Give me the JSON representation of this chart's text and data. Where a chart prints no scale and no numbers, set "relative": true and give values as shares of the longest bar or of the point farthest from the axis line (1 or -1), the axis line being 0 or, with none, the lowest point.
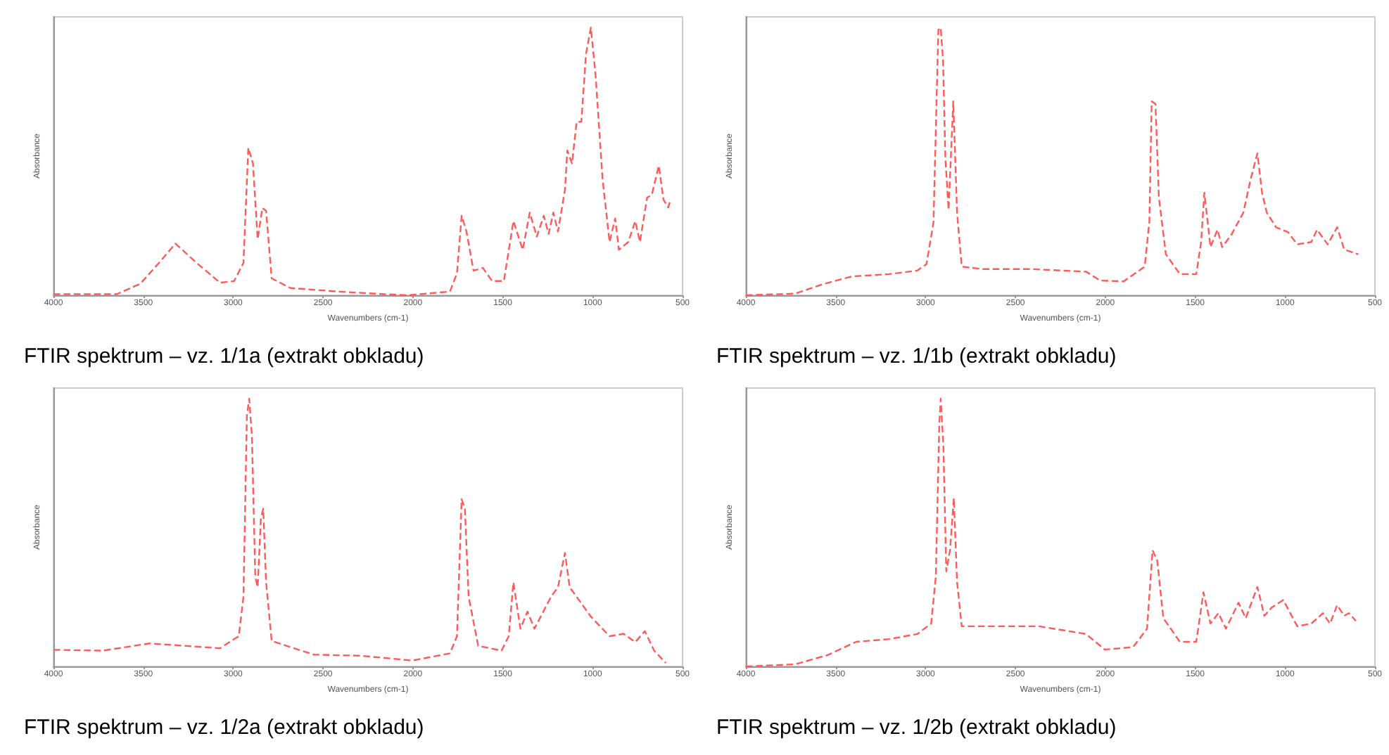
{
  "chart_data": [
    {
      "type": "line",
      "title": "FTIR spektrum – vz. 1/1a (extrakt obkladu)",
      "xlabel": "Wavenumbers (cm-1)",
      "ylabel": "Absorbance",
      "relative": true,
      "line_style": "dashed",
      "xlim": [
        4000,
        500
      ],
      "xticks": [
        4000,
        3500,
        3000,
        2500,
        2000,
        1500,
        1000,
        500
      ],
      "x": [
        4000,
        3648,
        3517,
        3413,
        3321,
        3204,
        3073,
        2995,
        2943,
        2916,
        2890,
        2864,
        2838,
        2817,
        2786,
        2681,
        2420,
        2159,
        2029,
        1794,
        1755,
        1729,
        1702,
        1663,
        1611,
        1559,
        1494,
        1441,
        1389,
        1350,
        1311,
        1272,
        1245,
        1219,
        1193,
        1154,
        1141,
        1115,
        1089,
        1063,
        1037,
        1010,
        984,
        945,
        906,
        875,
        854,
        802,
        763,
        737,
        697,
        671,
        632,
        606,
        580,
        567
      ],
      "series": [
        {
          "color": "#ff5a5a",
          "values": [
            0.004,
            0.004,
            0.043,
            0.121,
            0.193,
            0.121,
            0.047,
            0.053,
            0.121,
            0.551,
            0.492,
            0.209,
            0.326,
            0.316,
            0.063,
            0.027,
            0.014,
            0.004,
            0,
            0.014,
            0.082,
            0.297,
            0.238,
            0.092,
            0.102,
            0.053,
            0.053,
            0.277,
            0.17,
            0.309,
            0.219,
            0.297,
            0.229,
            0.309,
            0.238,
            0.395,
            0.541,
            0.492,
            0.648,
            0.648,
            0.902,
            1,
            0.824,
            0.434,
            0.199,
            0.287,
            0.17,
            0.199,
            0.277,
            0.199,
            0.365,
            0.375,
            0.484,
            0.357,
            0.328,
            0.357
          ]
        }
      ]
    },
    {
      "type": "line",
      "title": "FTIR spektrum – vz. 1/1b (extrakt obkladu)",
      "xlabel": "Wavenumbers (cm-1)",
      "ylabel": "Absorbance",
      "relative": true,
      "line_style": "dashed",
      "xlim": [
        4000,
        500
      ],
      "xticks": [
        4000,
        3500,
        3000,
        2500,
        2000,
        1500,
        1000,
        500
      ],
      "x": [
        4000,
        3726,
        3569,
        3413,
        3204,
        3047,
        2995,
        2956,
        2929,
        2916,
        2903,
        2890,
        2872,
        2846,
        2825,
        2799,
        2681,
        2420,
        2107,
        2029,
        1898,
        1781,
        1755,
        1742,
        1721,
        1702,
        1663,
        1585,
        1494,
        1467,
        1449,
        1415,
        1376,
        1350,
        1298,
        1232,
        1193,
        1154,
        1128,
        1102,
        1050,
        984,
        932,
        854,
        822,
        763,
        710,
        671,
        593
      ],
      "series": [
        {
          "color": "#ff5a5a",
          "values": [
            0,
            0.006,
            0.042,
            0.07,
            0.079,
            0.092,
            0.116,
            0.273,
            0.991,
            1,
            0.88,
            0.512,
            0.319,
            0.724,
            0.309,
            0.107,
            0.098,
            0.098,
            0.088,
            0.055,
            0.052,
            0.107,
            0.273,
            0.724,
            0.715,
            0.365,
            0.153,
            0.079,
            0.079,
            0.199,
            0.383,
            0.18,
            0.245,
            0.18,
            0.227,
            0.309,
            0.429,
            0.53,
            0.383,
            0.309,
            0.254,
            0.236,
            0.19,
            0.199,
            0.245,
            0.19,
            0.254,
            0.171,
            0.153
          ]
        }
      ]
    },
    {
      "type": "line",
      "title": "FTIR spektrum – vz. 1/2a (extrakt obkladu)",
      "xlabel": "Wavenumbers (cm-1)",
      "ylabel": "Absorbance",
      "relative": true,
      "line_style": "dashed",
      "xlim": [
        4000,
        500
      ],
      "xticks": [
        4000,
        3500,
        3000,
        2500,
        2000,
        1500,
        1000,
        500
      ],
      "x": [
        4000,
        3726,
        3465,
        3334,
        3073,
        2969,
        2943,
        2924,
        2911,
        2896,
        2877,
        2864,
        2846,
        2833,
        2817,
        2786,
        2551,
        2290,
        2003,
        1794,
        1755,
        1729,
        1711,
        1690,
        1637,
        1507,
        1467,
        1441,
        1402,
        1363,
        1324,
        1232,
        1193,
        1154,
        1128,
        1089,
        1010,
        906,
        828,
        763,
        710,
        658,
        593
      ],
      "series": [
        {
          "color": "#ff5a5a",
          "values": [
            0.062,
            0.059,
            0.086,
            0.08,
            0.068,
            0.113,
            0.26,
            0.936,
            1,
            0.863,
            0.333,
            0.296,
            0.552,
            0.589,
            0.314,
            0.095,
            0.044,
            0.04,
            0.022,
            0.049,
            0.113,
            0.625,
            0.589,
            0.26,
            0.077,
            0.059,
            0.113,
            0.314,
            0.141,
            0.205,
            0.141,
            0.26,
            0.296,
            0.424,
            0.296,
            0.26,
            0.186,
            0.113,
            0.122,
            0.091,
            0.132,
            0.059,
            0.013
          ]
        }
      ]
    },
    {
      "type": "line",
      "title": "FTIR spektrum – vz. 1/2b (extrakt obkladu)",
      "xlabel": "Wavenumbers (cm-1)",
      "ylabel": "Absorbance",
      "relative": true,
      "line_style": "dashed",
      "xlim": [
        4000,
        500
      ],
      "xticks": [
        4000,
        3500,
        3000,
        2500,
        2000,
        1500,
        1000,
        500
      ],
      "x": [
        4000,
        3726,
        3543,
        3386,
        3204,
        3047,
        2969,
        2943,
        2924,
        2916,
        2901,
        2885,
        2864,
        2843,
        2825,
        2799,
        2681,
        2368,
        2107,
        2003,
        1846,
        1768,
        1737,
        1711,
        1677,
        1585,
        1494,
        1454,
        1415,
        1371,
        1329,
        1259,
        1219,
        1154,
        1115,
        1076,
        1010,
        932,
        854,
        789,
        750,
        710,
        671,
        645,
        606
      ],
      "series": [
        {
          "color": "#ff5a5a",
          "values": [
            0,
            0.008,
            0.043,
            0.092,
            0.102,
            0.121,
            0.16,
            0.336,
            0.902,
            1,
            0.824,
            0.355,
            0.434,
            0.629,
            0.316,
            0.15,
            0.15,
            0.15,
            0.121,
            0.063,
            0.072,
            0.141,
            0.434,
            0.395,
            0.18,
            0.092,
            0.092,
            0.277,
            0.16,
            0.199,
            0.141,
            0.238,
            0.18,
            0.297,
            0.189,
            0.219,
            0.248,
            0.15,
            0.16,
            0.199,
            0.16,
            0.229,
            0.189,
            0.199,
            0.17
          ]
        }
      ]
    }
  ]
}
